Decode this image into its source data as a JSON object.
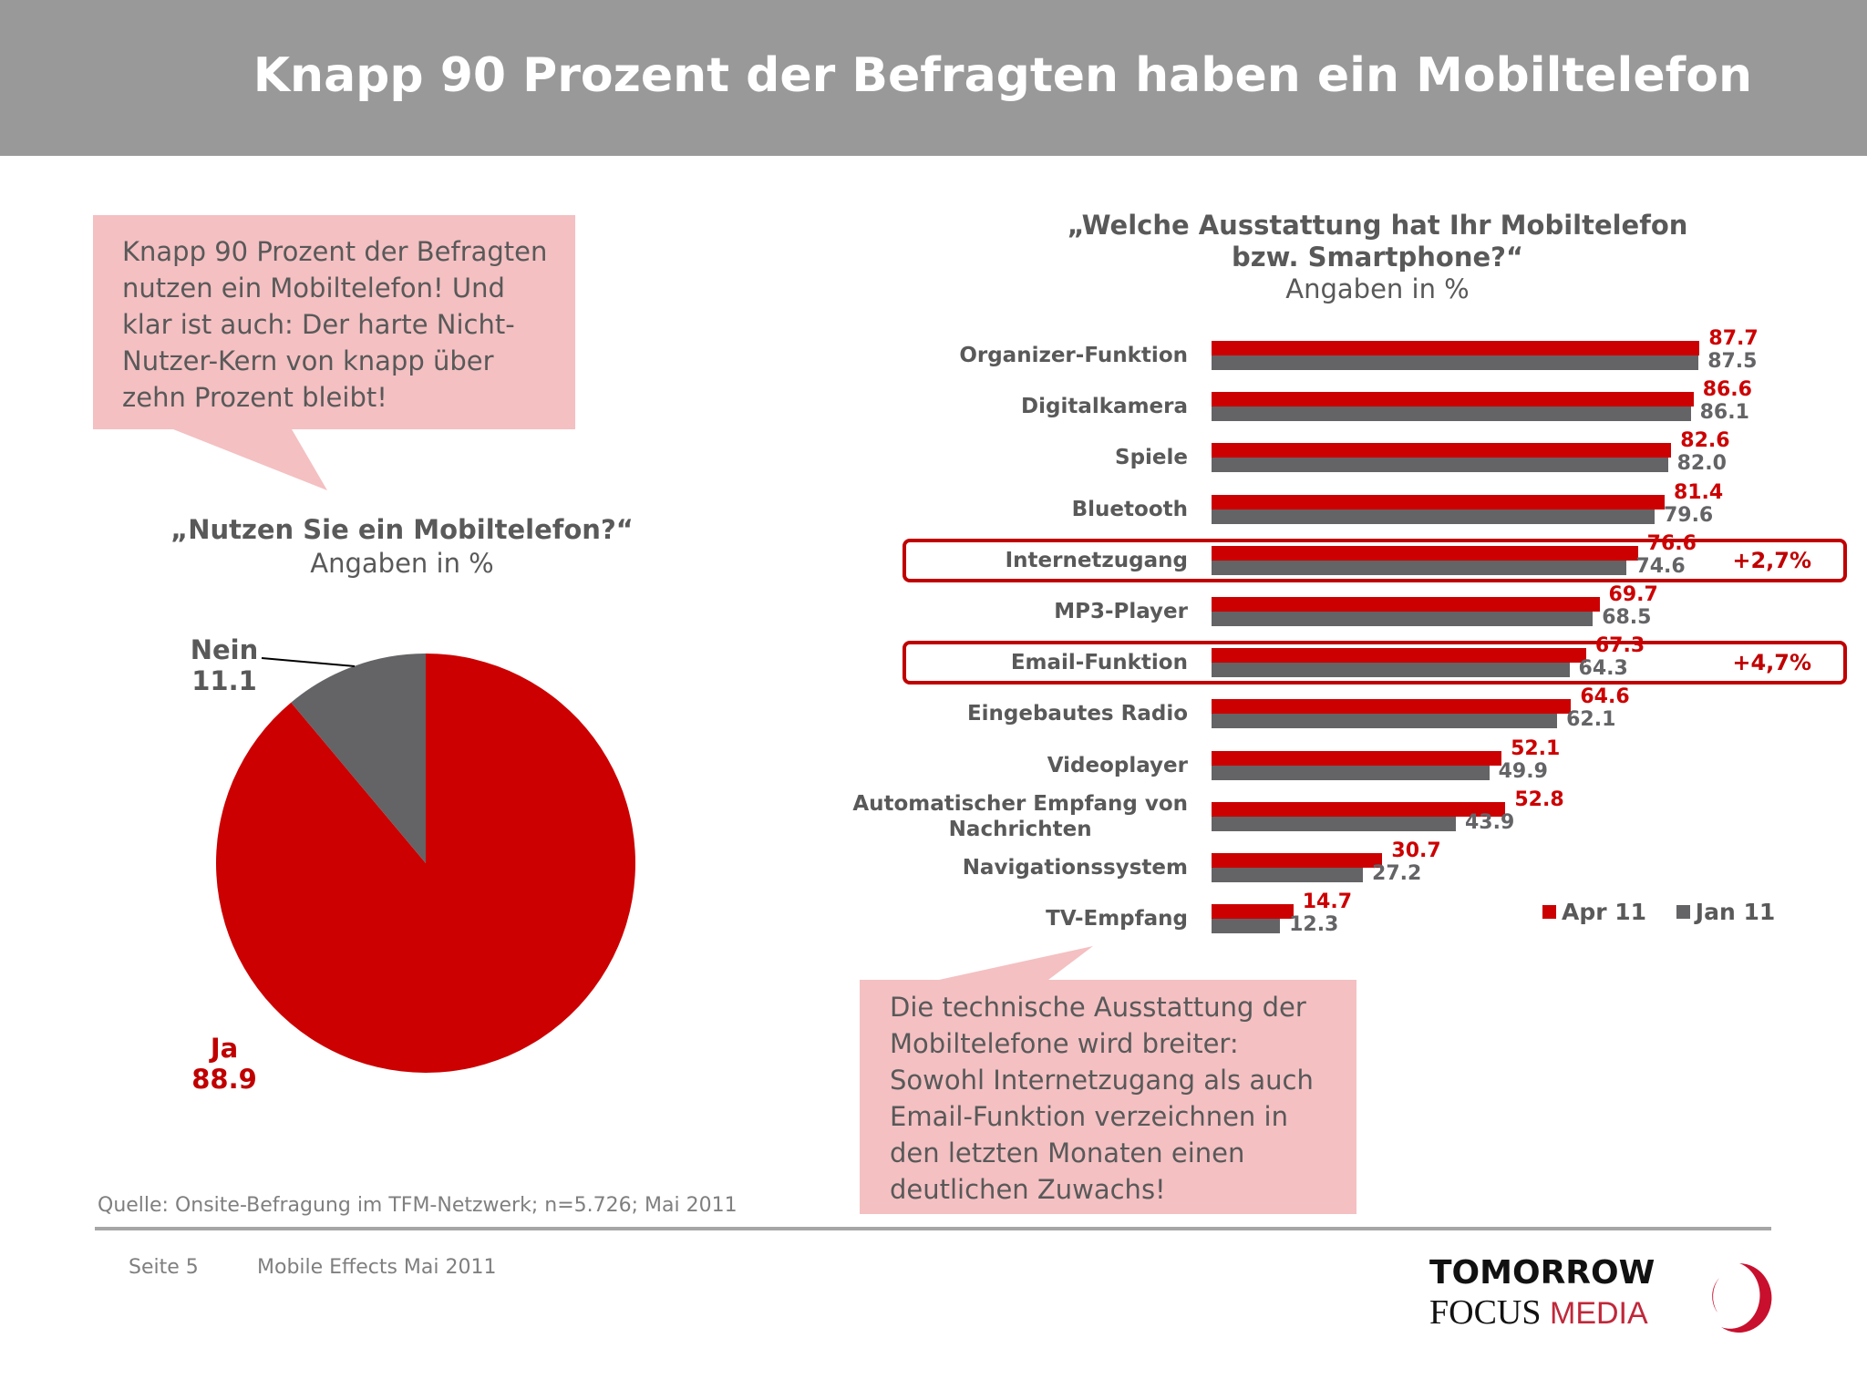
{
  "header": {
    "title": "Knapp 90 Prozent der Befragten haben ein Mobiltelefon"
  },
  "callout_left": {
    "lines": [
      "Knapp 90 Prozent der Befragten",
      "nutzen ein Mobiltelefon! Und",
      "klar ist auch: Der harte Nicht-",
      "Nutzer-Kern von knapp über",
      "zehn Prozent bleibt!"
    ]
  },
  "callout_right": {
    "lines": [
      "Die technische Ausstattung der",
      "Mobiltelefone wird breiter:",
      "Sowohl Internetzugang als auch",
      "Email-Funktion verzeichnen in",
      "den letzten Monaten einen",
      "deutlichen Zuwachs!"
    ]
  },
  "colors": {
    "apr": "#cc0000",
    "jan": "#646366",
    "header": "#999999",
    "callout": "#f4c0c2"
  },
  "chart_data": [
    {
      "type": "pie",
      "title": "„Nutzen Sie ein Mobiltelefon?“",
      "subtitle": "Angaben in %",
      "slices": [
        {
          "label": "Nein",
          "value": 11.1,
          "display": "11.1",
          "color": "#646366"
        },
        {
          "label": "Ja",
          "value": 88.9,
          "display": "88.9",
          "color": "#cc0000"
        }
      ]
    },
    {
      "type": "bar",
      "orientation": "horizontal",
      "title": "„Welche Ausstattung hat Ihr Mobiltelefon bzw. Smartphone?“",
      "title_lines": [
        "„Welche Ausstattung hat Ihr Mobiltelefon",
        "bzw. Smartphone?“"
      ],
      "subtitle": "Angaben in %",
      "categories": [
        "Organizer-Funktion",
        "Digitalkamera",
        "Spiele",
        "Bluetooth",
        "Internetzugang",
        "MP3-Player",
        "Email-Funktion",
        "Eingebautes Radio",
        "Videoplayer",
        "Automatischer Empfang von Nachrichten",
        "Navigationssystem",
        "TV-Empfang"
      ],
      "series": [
        {
          "name": "Apr 11",
          "color": "#cc0000",
          "values": [
            87.7,
            86.6,
            82.6,
            81.4,
            76.6,
            69.7,
            67.3,
            64.6,
            52.1,
            52.8,
            30.7,
            14.7
          ],
          "labels": [
            "87.7",
            "86.6",
            "82.6",
            "81.4",
            "76.6",
            "69.7",
            "67.3",
            "64.6",
            "52.1",
            "52.8",
            "30.7",
            "14.7"
          ]
        },
        {
          "name": "Jan 11",
          "color": "#646366",
          "values": [
            87.5,
            86.1,
            82.0,
            79.6,
            74.6,
            68.5,
            64.3,
            62.1,
            49.9,
            43.9,
            27.2,
            12.3
          ],
          "labels": [
            "87.5",
            "86.1",
            "82.0",
            "79.6",
            "74.6",
            "68.5",
            "64.3",
            "62.1",
            "49.9",
            "43.9",
            "27.2",
            "12.3"
          ]
        }
      ],
      "highlights": [
        {
          "category": "Internetzugang",
          "delta": "+2,7%"
        },
        {
          "category": "Email-Funktion",
          "delta": "+4,7%"
        }
      ],
      "xlim": [
        0,
        100
      ],
      "grid": false,
      "axis_visible": false,
      "legend": "bottom-right"
    }
  ],
  "source": "Quelle: Onsite-Befragung im TFM-Netzwerk; n=5.726; Mai 2011",
  "footer": {
    "page": "Seite 5",
    "doc": "Mobile Effects Mai 2011"
  },
  "logo": {
    "line1": "TOMORROW",
    "line2a": "FOCUS",
    "line2b": "MEDIA"
  }
}
